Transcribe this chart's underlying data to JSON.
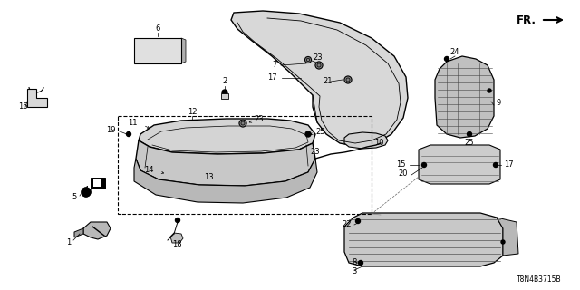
{
  "bg_color": "#ffffff",
  "line_color": "#000000",
  "diagram_code": "T8N4B3715B",
  "fr_label": "FR.",
  "gray_light": "#e0e0e0",
  "gray_mid": "#c8c8c8",
  "gray_dark": "#a0a0a0",
  "fig_w": 6.4,
  "fig_h": 3.2,
  "dpi": 100
}
